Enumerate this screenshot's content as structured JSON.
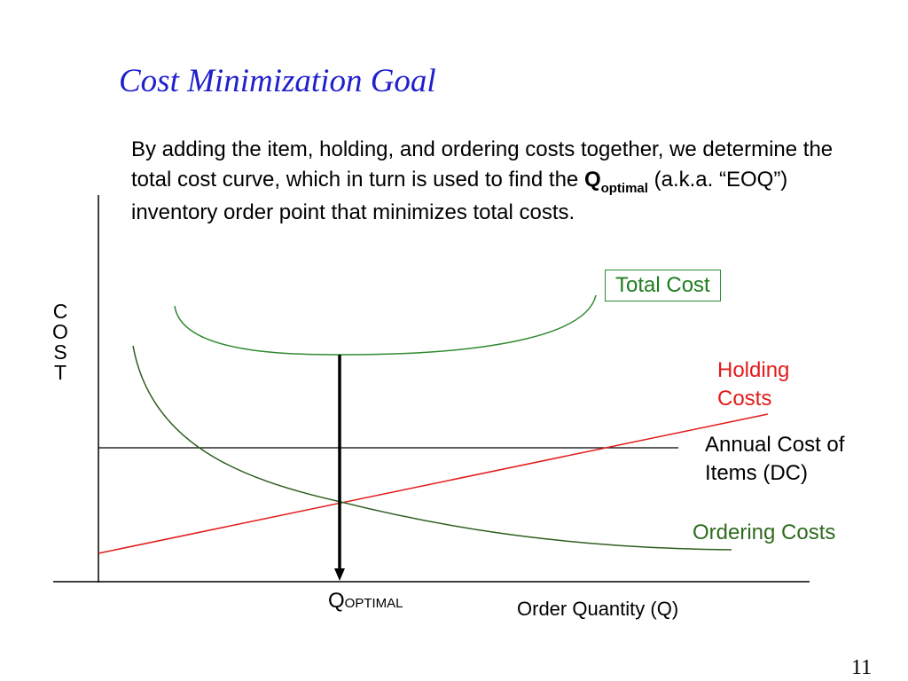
{
  "slide": {
    "title": "Cost Minimization Goal",
    "body": {
      "part1": "By adding the item, holding, and ordering costs together, we determine the total cost curve, which in turn is used to find the ",
      "q_symbol": "Q",
      "q_subscript": "optimal",
      "part2": "  (a.k.a. “EOQ”) inventory order point that minimizes total costs."
    },
    "page_number": "11"
  },
  "diagram": {
    "y_axis_label": "COST",
    "x_axis_label": "Order Quantity (Q)",
    "q_optimal": {
      "symbol": "Q",
      "subscript": "OPTIMAL"
    },
    "curves": {
      "total_cost": {
        "label": "Total Cost",
        "color": "#2e8b2e"
      },
      "holding_costs": {
        "label": "Holding Costs",
        "color": "#e31a1a"
      },
      "annual_cost_items": {
        "label": "Annual Cost of Items (DC)",
        "color": "#000000"
      },
      "ordering_costs": {
        "label": "Ordering Costs",
        "color": "#2e5e1e"
      }
    }
  }
}
